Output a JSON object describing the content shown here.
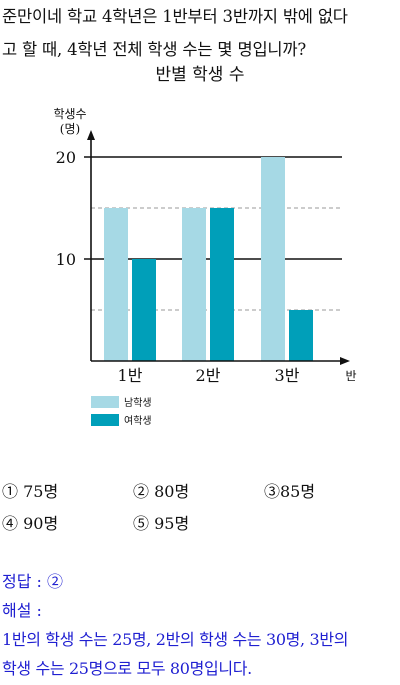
{
  "question": {
    "line1": "준만이네 학교 4학년은 1반부터 3반까지 밖에 없다",
    "line2": "고 할 때, 4학년 전체 학생 수는 몇 명입니까?"
  },
  "chart_title": "반별 학생 수",
  "chart_data": {
    "type": "bar",
    "title": "반별 학생 수",
    "ylabel_line1": "학생수",
    "ylabel_line2": "(명)",
    "xlabel": "반",
    "categories": [
      "1반",
      "2반",
      "3반"
    ],
    "y_ticks": [
      "10",
      "20"
    ],
    "ylim": [
      0,
      20
    ],
    "grid": "dashed lines at 5 and 15, solid lines at 10 and 20",
    "legend_placement": "bottom-left",
    "series": [
      {
        "name": "남학생",
        "values": [
          15,
          15,
          20
        ],
        "color": "#a6d9e5"
      },
      {
        "name": "여학생",
        "values": [
          10,
          15,
          5
        ],
        "color": "#009fb9"
      }
    ]
  },
  "options": [
    "① 75명",
    "② 80명",
    "③85명",
    "④ 90명",
    "⑤ 95명"
  ],
  "answer": {
    "label": "정답 : ②",
    "explain_label": "해설 :",
    "explain_line1": "1반의 학생 수는 25명, 2반의 학생 수는 30명, 3반의",
    "explain_line2": "학생 수는 25명으로 모두 80명입니다."
  }
}
